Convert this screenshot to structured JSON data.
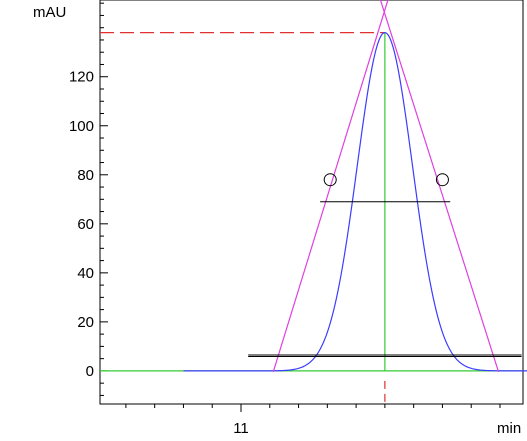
{
  "chart_data": {
    "type": "line",
    "title": "",
    "xlabel": "min",
    "ylabel": "mAU",
    "x_ticks": [
      {
        "value": 11,
        "label": "11"
      }
    ],
    "y_ticks": [
      {
        "value": 0,
        "label": "0"
      },
      {
        "value": 20,
        "label": "20"
      },
      {
        "value": 40,
        "label": "40"
      },
      {
        "value": 60,
        "label": "60"
      },
      {
        "value": 80,
        "label": "80"
      },
      {
        "value": 100,
        "label": "100"
      },
      {
        "value": 120,
        "label": "120"
      }
    ],
    "xlim": [
      10.51,
      11.98
    ],
    "ylim": [
      -13.5,
      151.3
    ],
    "grid": false,
    "series": [
      {
        "role": "peak",
        "color": "#3c3cff",
        "peak_time": 11.5,
        "peak_height": 138,
        "sigma": 0.096,
        "x_range": [
          10.8,
          12.0
        ]
      }
    ],
    "annotations": {
      "baseline": {
        "color": "#33cc33",
        "y": 0
      },
      "apex_line": {
        "color": "#33cc33",
        "x": 11.5
      },
      "apex_height_marker": {
        "color": "#e03030",
        "y": 138
      },
      "apex_time_marker": {
        "color": "#e03030",
        "x": 11.5
      },
      "tangent_color": "#e040e0",
      "left_tangent": {
        "from": [
          11.112,
          -0.4
        ],
        "to": [
          11.515,
          153.0
        ]
      },
      "right_tangent": {
        "from": [
          11.895,
          -0.4
        ],
        "to": [
          11.48,
          153.0
        ]
      },
      "half_height_width": {
        "color": "#000000",
        "y": 69,
        "x": [
          11.275,
          11.727
        ]
      },
      "base_width_lines": {
        "color": "#000000",
        "y": [
          6.5,
          5.9
        ],
        "x": [
          11.025,
          11.975
        ]
      },
      "inflection_points": {
        "color": "#000000",
        "y": 78,
        "x": [
          11.31,
          11.7
        ]
      }
    }
  }
}
